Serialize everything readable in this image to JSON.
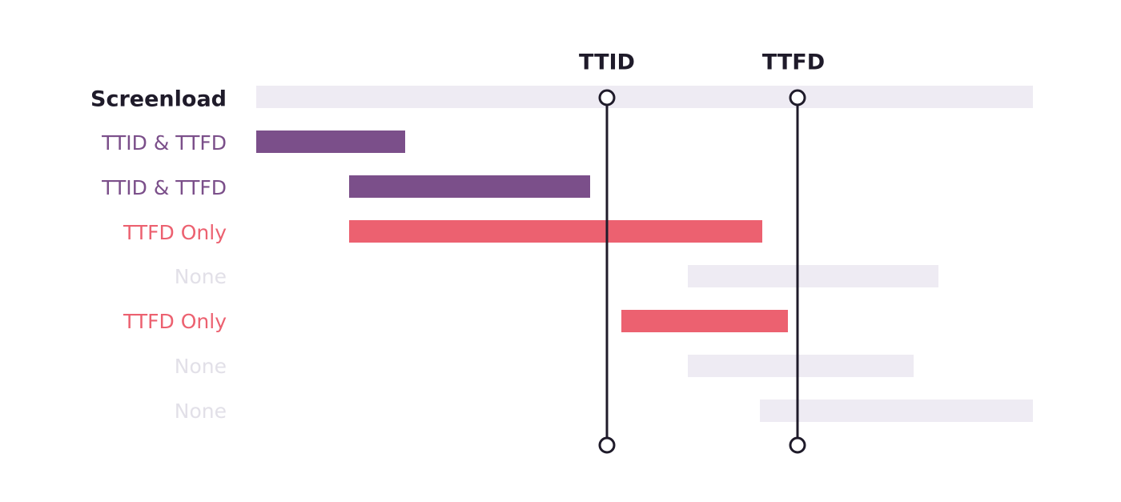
{
  "markers": [
    "TTID",
    "TTFD"
  ],
  "rows": [
    "Screenload",
    "TTID & TTFD",
    "TTID & TTFD",
    "TTFD Only",
    "None",
    "TTFD Only",
    "None",
    "None"
  ]
}
